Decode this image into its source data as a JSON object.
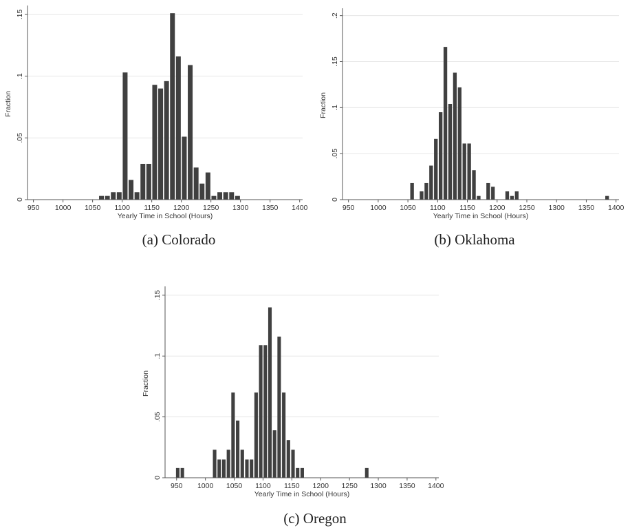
{
  "colors": {
    "bar": "#404040",
    "axis": "#555555",
    "grid": "#e6e6e6"
  },
  "chart_data": [
    {
      "id": "colorado",
      "type": "bar",
      "caption": "(a) Colorado",
      "xlabel": "Yearly Time in School (Hours)",
      "ylabel": "Fraction",
      "xlim": [
        940,
        1405
      ],
      "ylim": [
        0,
        0.155
      ],
      "xticks": [
        950,
        1000,
        1050,
        1100,
        1150,
        1200,
        1250,
        1300,
        1350,
        1400
      ],
      "yticks": [
        0,
        0.05,
        0.1,
        0.15
      ],
      "ytick_labels": [
        "0",
        ".05",
        ".1",
        ".15"
      ],
      "grid": true,
      "bin_width": 10,
      "bins": [
        {
          "x": 1060,
          "y": 0.003
        },
        {
          "x": 1070,
          "y": 0.003
        },
        {
          "x": 1080,
          "y": 0.006
        },
        {
          "x": 1090,
          "y": 0.006
        },
        {
          "x": 1100,
          "y": 0.103
        },
        {
          "x": 1110,
          "y": 0.016
        },
        {
          "x": 1120,
          "y": 0.006
        },
        {
          "x": 1130,
          "y": 0.029
        },
        {
          "x": 1140,
          "y": 0.029
        },
        {
          "x": 1150,
          "y": 0.093
        },
        {
          "x": 1160,
          "y": 0.09
        },
        {
          "x": 1170,
          "y": 0.096
        },
        {
          "x": 1180,
          "y": 0.151
        },
        {
          "x": 1190,
          "y": 0.116
        },
        {
          "x": 1200,
          "y": 0.051
        },
        {
          "x": 1210,
          "y": 0.109
        },
        {
          "x": 1220,
          "y": 0.026
        },
        {
          "x": 1230,
          "y": 0.013
        },
        {
          "x": 1240,
          "y": 0.022
        },
        {
          "x": 1250,
          "y": 0.003
        },
        {
          "x": 1260,
          "y": 0.006
        },
        {
          "x": 1270,
          "y": 0.006
        },
        {
          "x": 1280,
          "y": 0.006
        },
        {
          "x": 1290,
          "y": 0.003
        }
      ]
    },
    {
      "id": "oklahoma",
      "type": "bar",
      "caption": "(b) Oklahoma",
      "xlabel": "Yearly Time in School (Hours)",
      "ylabel": "Fraction",
      "xlim": [
        940,
        1405
      ],
      "ylim": [
        0,
        0.205
      ],
      "xticks": [
        950,
        1000,
        1050,
        1100,
        1150,
        1200,
        1250,
        1300,
        1350,
        1400
      ],
      "yticks": [
        0,
        0.05,
        0.1,
        0.15,
        0.2
      ],
      "ytick_labels": [
        "0",
        ".05",
        ".1",
        ".15",
        ".2"
      ],
      "grid": true,
      "bin_width": 8,
      "bins": [
        {
          "x": 1053,
          "y": 0.018
        },
        {
          "x": 1069,
          "y": 0.009
        },
        {
          "x": 1077,
          "y": 0.018
        },
        {
          "x": 1085,
          "y": 0.037
        },
        {
          "x": 1093,
          "y": 0.066
        },
        {
          "x": 1101,
          "y": 0.095
        },
        {
          "x": 1109,
          "y": 0.166
        },
        {
          "x": 1117,
          "y": 0.104
        },
        {
          "x": 1125,
          "y": 0.138
        },
        {
          "x": 1133,
          "y": 0.122
        },
        {
          "x": 1141,
          "y": 0.061
        },
        {
          "x": 1149,
          "y": 0.061
        },
        {
          "x": 1157,
          "y": 0.032
        },
        {
          "x": 1165,
          "y": 0.004
        },
        {
          "x": 1181,
          "y": 0.018
        },
        {
          "x": 1189,
          "y": 0.014
        },
        {
          "x": 1213,
          "y": 0.009
        },
        {
          "x": 1221,
          "y": 0.004
        },
        {
          "x": 1229,
          "y": 0.009
        },
        {
          "x": 1381,
          "y": 0.004
        }
      ]
    },
    {
      "id": "oregon",
      "type": "bar",
      "caption": "(c) Oregon",
      "xlabel": "Yearly Time in School (Hours)",
      "ylabel": "Fraction",
      "xlim": [
        930,
        1405
      ],
      "ylim": [
        0,
        0.155
      ],
      "xticks": [
        950,
        1000,
        1050,
        1100,
        1150,
        1200,
        1250,
        1300,
        1350,
        1400
      ],
      "yticks": [
        0,
        0.05,
        0.1,
        0.15
      ],
      "ytick_labels": [
        "0",
        ".05",
        ".1",
        ".15"
      ],
      "grid": true,
      "bin_width": 8,
      "bins": [
        {
          "x": 948,
          "y": 0.008
        },
        {
          "x": 956,
          "y": 0.008
        },
        {
          "x": 1012,
          "y": 0.023
        },
        {
          "x": 1020,
          "y": 0.015
        },
        {
          "x": 1028,
          "y": 0.015
        },
        {
          "x": 1036,
          "y": 0.023
        },
        {
          "x": 1044,
          "y": 0.07
        },
        {
          "x": 1052,
          "y": 0.047
        },
        {
          "x": 1060,
          "y": 0.023
        },
        {
          "x": 1068,
          "y": 0.015
        },
        {
          "x": 1076,
          "y": 0.015
        },
        {
          "x": 1084,
          "y": 0.07
        },
        {
          "x": 1092,
          "y": 0.109
        },
        {
          "x": 1100,
          "y": 0.109
        },
        {
          "x": 1108,
          "y": 0.14
        },
        {
          "x": 1116,
          "y": 0.039
        },
        {
          "x": 1124,
          "y": 0.116
        },
        {
          "x": 1132,
          "y": 0.07
        },
        {
          "x": 1140,
          "y": 0.031
        },
        {
          "x": 1148,
          "y": 0.023
        },
        {
          "x": 1156,
          "y": 0.008
        },
        {
          "x": 1164,
          "y": 0.008
        },
        {
          "x": 1276,
          "y": 0.008
        }
      ]
    }
  ]
}
